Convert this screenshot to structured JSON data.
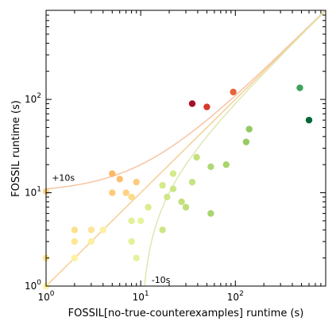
{
  "chart_data": {
    "type": "scatter",
    "title": "",
    "xlabel": "FOSSIL[no-true-counterexamples] runtime (s)",
    "ylabel": "FOSSIL runtime (s)",
    "x_scale": "log",
    "y_scale": "log",
    "xlim": [
      1,
      900
    ],
    "ylim": [
      1,
      900
    ],
    "grid": false,
    "x_ticks": [
      {
        "value": 1,
        "base": "10",
        "exp": "0"
      },
      {
        "value": 10,
        "base": "10",
        "exp": "1"
      },
      {
        "value": 100,
        "base": "10",
        "exp": "2"
      }
    ],
    "y_ticks": [
      {
        "value": 1,
        "base": "10",
        "exp": "0"
      },
      {
        "value": 10,
        "base": "10",
        "exp": "1"
      },
      {
        "value": 100,
        "base": "10",
        "exp": "2"
      }
    ],
    "reference_lines": [
      {
        "label": "+10s",
        "offset": 10,
        "color": "#f6c4a4"
      },
      {
        "label": "",
        "offset": 0,
        "color": "#f5cf95"
      },
      {
        "label": "-10s",
        "offset": -10,
        "color": "#dfe7b4"
      }
    ],
    "points": [
      {
        "x": 1.0,
        "y": 10.3,
        "color": "#fdd58a"
      },
      {
        "x": 1.0,
        "y": 2.0,
        "color": "#fde792"
      },
      {
        "x": 1.0,
        "y": 1.0,
        "color": "#fef3a4"
      },
      {
        "x": 2.0,
        "y": 4.0,
        "color": "#fde08b"
      },
      {
        "x": 2.0,
        "y": 3.0,
        "color": "#fde792"
      },
      {
        "x": 2.0,
        "y": 2.0,
        "color": "#fef1a1"
      },
      {
        "x": 3.0,
        "y": 4.0,
        "color": "#fee39a"
      },
      {
        "x": 3.0,
        "y": 3.0,
        "color": "#feee9f"
      },
      {
        "x": 4.0,
        "y": 4.0,
        "color": "#feefa5"
      },
      {
        "x": 5.0,
        "y": 16.0,
        "color": "#fdb865"
      },
      {
        "x": 5.0,
        "y": 10.0,
        "color": "#fdca7b"
      },
      {
        "x": 6.0,
        "y": 14.0,
        "color": "#fdbf6f"
      },
      {
        "x": 7.0,
        "y": 10.0,
        "color": "#fdd385"
      },
      {
        "x": 8.0,
        "y": 9.0,
        "color": "#fddc88"
      },
      {
        "x": 8.0,
        "y": 5.0,
        "color": "#e2f099"
      },
      {
        "x": 8.0,
        "y": 3.0,
        "color": "#e3f19b"
      },
      {
        "x": 9.0,
        "y": 13.0,
        "color": "#fdcb7e"
      },
      {
        "x": 9.0,
        "y": 2.0,
        "color": "#e5f19d"
      },
      {
        "x": 10.0,
        "y": 5.0,
        "color": "#e7f39e"
      },
      {
        "x": 12.0,
        "y": 7.0,
        "color": "#daed8f"
      },
      {
        "x": 17.0,
        "y": 12.0,
        "color": "#d4ea89"
      },
      {
        "x": 17.0,
        "y": 4.0,
        "color": "#cde686"
      },
      {
        "x": 19.0,
        "y": 9.0,
        "color": "#cfe787"
      },
      {
        "x": 22.0,
        "y": 16.0,
        "color": "#d4ea89"
      },
      {
        "x": 22.0,
        "y": 11.0,
        "color": "#cbe585"
      },
      {
        "x": 27.0,
        "y": 8.0,
        "color": "#c3e07e"
      },
      {
        "x": 30.0,
        "y": 7.0,
        "color": "#bfde7c"
      },
      {
        "x": 35.0,
        "y": 13.0,
        "color": "#c6e283"
      },
      {
        "x": 35.0,
        "y": 90.0,
        "color": "#a50f27"
      },
      {
        "x": 39.0,
        "y": 24.0,
        "color": "#c3e07e"
      },
      {
        "x": 50.0,
        "y": 83.0,
        "color": "#d73a2e"
      },
      {
        "x": 55.0,
        "y": 19.0,
        "color": "#b1d874"
      },
      {
        "x": 55.0,
        "y": 6.0,
        "color": "#a9d56e"
      },
      {
        "x": 80.0,
        "y": 20.0,
        "color": "#a8d46c"
      },
      {
        "x": 95.0,
        "y": 120.0,
        "color": "#e5643c"
      },
      {
        "x": 130.0,
        "y": 35.0,
        "color": "#97cc64"
      },
      {
        "x": 140.0,
        "y": 48.0,
        "color": "#91c962"
      },
      {
        "x": 480.0,
        "y": 133.0,
        "color": "#3aa55a"
      },
      {
        "x": 600.0,
        "y": 60.0,
        "color": "#006837"
      }
    ]
  }
}
